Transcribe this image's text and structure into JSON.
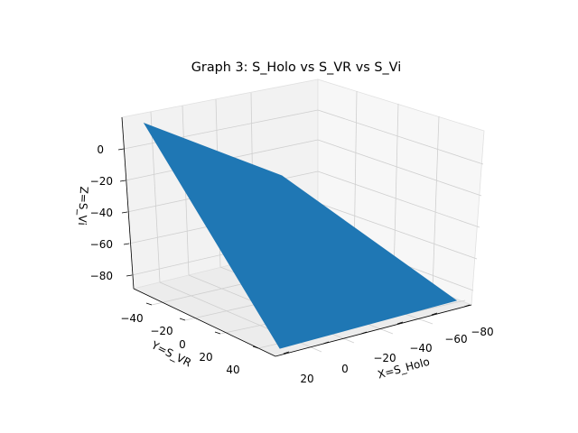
{
  "chart_data": {
    "type": "surface3d",
    "title": "Graph 3: S_Holo vs S_VR vs S_Vi",
    "xlabel": "X=S_Holo",
    "ylabel": "Y=S_VR",
    "zlabel": "Z=S_Vi",
    "x_ticks": [
      "−80",
      "−60",
      "−40",
      "−20",
      "0",
      "20"
    ],
    "y_ticks": [
      "−40",
      "−20",
      "0",
      "20",
      "40"
    ],
    "z_ticks": [
      "0",
      "−20",
      "−40",
      "−60",
      "−80"
    ],
    "grid": true,
    "surface": {
      "color": "#1f77b4",
      "vertices": [
        {
          "x": 25,
          "y": -50,
          "z": 10
        },
        {
          "x": -5,
          "y": -45,
          "z": -20
        },
        {
          "x": -85,
          "y": 25,
          "z": -88
        },
        {
          "x": 20,
          "y": 50,
          "z": -95
        }
      ]
    }
  }
}
